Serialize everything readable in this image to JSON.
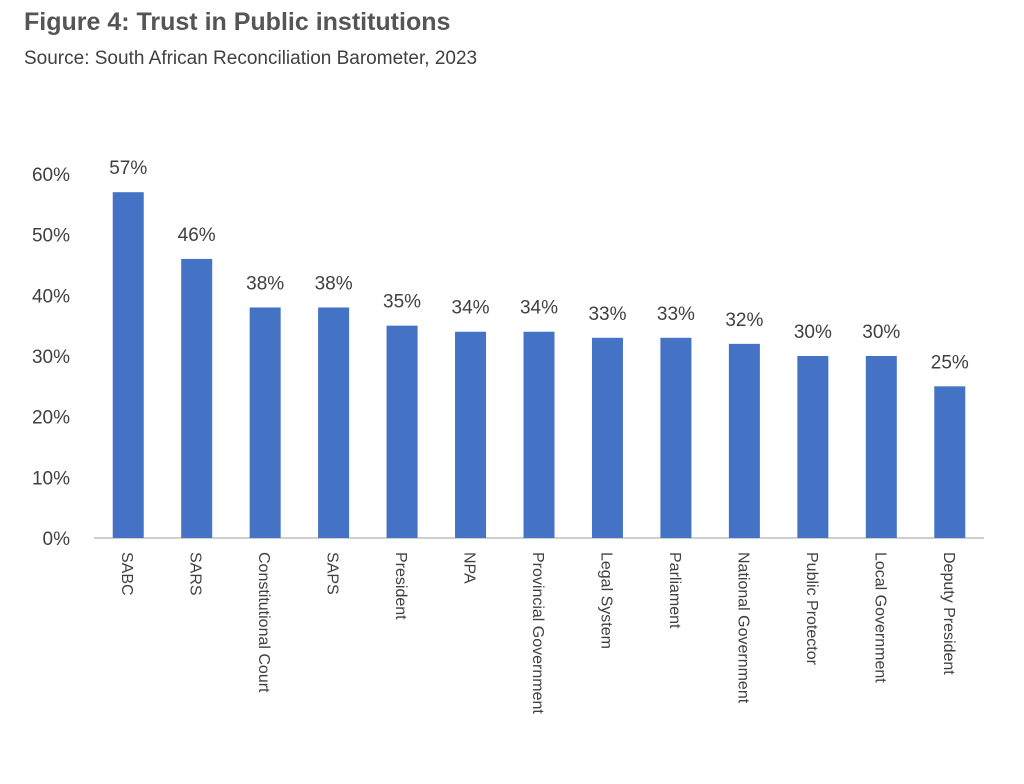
{
  "title": "Figure 4: Trust in Public institutions",
  "subtitle": "Source: South African Reconciliation Barometer, 2023",
  "chart_data": {
    "type": "bar",
    "categories": [
      "SABC",
      "SARS",
      "Constitutional Court",
      "SAPS",
      "President",
      "NPA",
      "Provincial Government",
      "Legal System",
      "Parliament",
      "National Government",
      "Public Protector",
      "Local Government",
      "Deputy President"
    ],
    "values": [
      57,
      46,
      38,
      38,
      35,
      34,
      34,
      33,
      33,
      32,
      30,
      30,
      25
    ],
    "data_labels": [
      "57%",
      "46%",
      "38%",
      "38%",
      "35%",
      "34%",
      "34%",
      "33%",
      "33%",
      "32%",
      "30%",
      "30%",
      "25%"
    ],
    "yticks": [
      0,
      10,
      20,
      30,
      40,
      50,
      60
    ],
    "ytick_labels": [
      "0%",
      "10%",
      "20%",
      "30%",
      "40%",
      "50%",
      "60%"
    ],
    "ylim": [
      0,
      60
    ],
    "grid": false,
    "bar_color": "#4472C4",
    "axis_color": "#BFBFBF"
  }
}
